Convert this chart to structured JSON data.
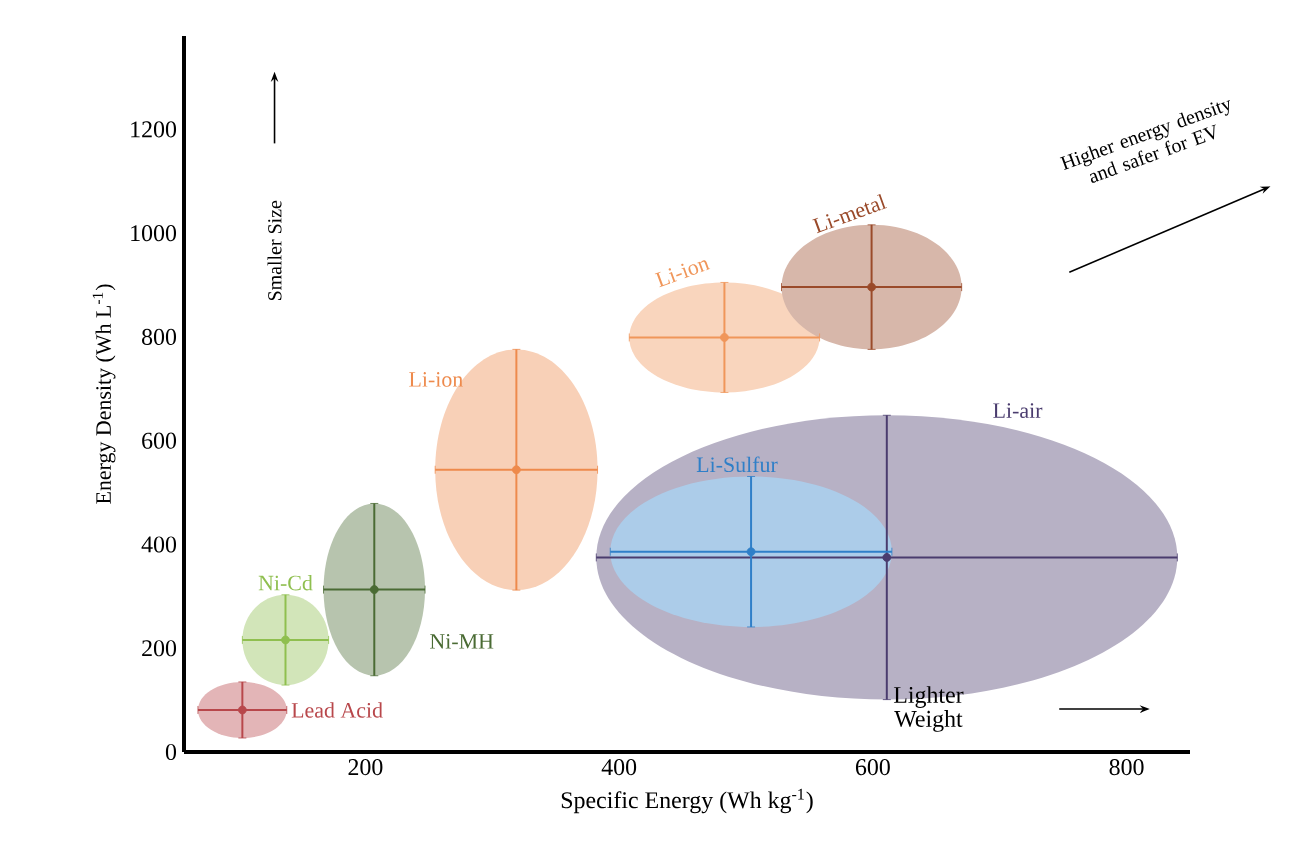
{
  "chart_data": {
    "type": "scatter",
    "xlabel": "Specific Energy (Wh kg$^{-1}$)",
    "ylabel": "Energy Density (Wh L$^{-1}$)",
    "xlim": [
      57,
      850
    ],
    "ylim": [
      0,
      1380
    ],
    "xticks": [
      200,
      400,
      600,
      800
    ],
    "yticks": [
      0,
      200,
      400,
      600,
      800,
      1000,
      1200
    ],
    "grid": false,
    "legend": false,
    "annotations": [
      "Smaller Size",
      "Higher energy density and safer for EV",
      "Lighter Weight"
    ],
    "series": [
      {
        "name": "Lead Acid",
        "color": "#b8474b",
        "x": [
          103
        ],
        "values": [
          81
        ],
        "xerrors": [
          35
        ],
        "errors": [
          54
        ]
      },
      {
        "name": "Ni-Cd",
        "color": "#8fbf4f",
        "x": [
          137
        ],
        "values": [
          216
        ],
        "xerrors": [
          34
        ],
        "errors": [
          87
        ]
      },
      {
        "name": "Ni-MH",
        "color": "#4a6b34",
        "x": [
          207
        ],
        "values": [
          313
        ],
        "xerrors": [
          40
        ],
        "errors": [
          166
        ]
      },
      {
        "name": "Li-ion",
        "color": "#ee8a4c",
        "x": [
          319
        ],
        "values": [
          544
        ],
        "xerrors": [
          64
        ],
        "errors": [
          232
        ]
      },
      {
        "name": "Li-ion",
        "color": "#f0965a",
        "x": [
          483
        ],
        "values": [
          799
        ],
        "xerrors": [
          75
        ],
        "errors": [
          106
        ]
      },
      {
        "name": "Li-metal",
        "color": "#9a4a2a",
        "x": [
          599
        ],
        "values": [
          896
        ],
        "xerrors": [
          71
        ],
        "errors": [
          120
        ]
      },
      {
        "name": "Li-air",
        "color": "#4a3c6e",
        "x": [
          611
        ],
        "values": [
          375
        ],
        "xerrors": [
          229
        ],
        "errors": [
          274
        ]
      },
      {
        "name": "Li-Sulfur",
        "color": "#2f7fc8",
        "x": [
          504
        ],
        "values": [
          386
        ],
        "xerrors": [
          111
        ],
        "errors": [
          145
        ]
      }
    ]
  }
}
